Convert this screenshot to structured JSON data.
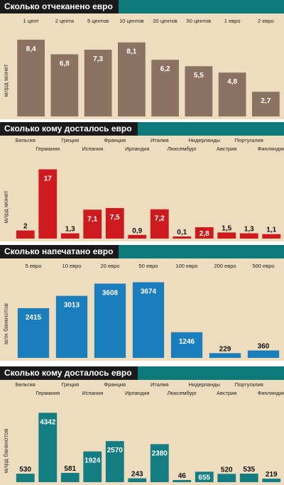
{
  "colors": {
    "panel_bg": "#eedcbf",
    "header_stripe": "#0d7a7a",
    "header_title_bg": "#1a1a1a",
    "header_title_text": "#ffffff"
  },
  "chart_data": [
    {
      "type": "bar",
      "title": "Сколько отчеканено евро",
      "ylabel": "млрд монет",
      "label_layout": "single",
      "categories": [
        "1 цент",
        "2 цента",
        "5 центов",
        "10 центов",
        "20 центов",
        "50 центов",
        "1 евро",
        "2 евро"
      ],
      "values": [
        8.4,
        6.8,
        7.3,
        8.1,
        6.2,
        5.5,
        4.8,
        2.7
      ],
      "value_labels": [
        "8,4",
        "6,8",
        "7,3",
        "8,1",
        "6,2",
        "5,5",
        "4,8",
        "2,7"
      ],
      "ylim": [
        0,
        9.4
      ],
      "bar_color": "#8c7262",
      "grid": false
    },
    {
      "type": "bar",
      "title": "Сколько кому досталось евро",
      "ylabel": "млрд монет",
      "label_layout": "staggered",
      "categories": [
        "Бельгия",
        "Германия",
        "Греция",
        "Испания",
        "Франция",
        "Ирландия",
        "Италия",
        "Люксембург",
        "Нидерланды",
        "Австрия",
        "Португалия",
        "Финляндия"
      ],
      "values": [
        2,
        17,
        1.3,
        7.1,
        7.5,
        0.9,
        7.2,
        0.1,
        2.8,
        1.5,
        1.3,
        1.1
      ],
      "value_labels": [
        "2",
        "17",
        "1,3",
        "7,1",
        "7,5",
        "0,9",
        "7,2",
        "0,1",
        "2,8",
        "1,5",
        "1,3",
        "1,1"
      ],
      "ylim": [
        0,
        19
      ],
      "bar_color": "#cc1a1e",
      "grid": false
    },
    {
      "type": "bar",
      "title": "Сколько напечатано евро",
      "ylabel": "млн банкнотов",
      "label_layout": "single",
      "categories": [
        "5 евро",
        "10 евро",
        "20 евро",
        "50 евро",
        "100 евро",
        "200 евро",
        "500 евро"
      ],
      "values": [
        2415,
        3013,
        3608,
        3674,
        1246,
        229,
        360
      ],
      "value_labels": [
        "2415",
        "3013",
        "3608",
        "3674",
        "1246",
        "229",
        "360"
      ],
      "ylim": [
        0,
        4000
      ],
      "bar_color": "#1a7dbc",
      "grid": false
    },
    {
      "type": "bar",
      "title": "Сколько кому досталось евро",
      "ylabel": "млрд банкнотов",
      "label_layout": "staggered",
      "categories": [
        "Бельгия",
        "Германия",
        "Греция",
        "Испания",
        "Франция",
        "Ирландия",
        "Италия",
        "Люксембург",
        "Нидерланды",
        "Австрия",
        "Португалия",
        "Финляндия"
      ],
      "values": [
        530,
        4342,
        581,
        1924,
        2570,
        243,
        2380,
        46,
        655,
        520,
        535,
        219
      ],
      "value_labels": [
        "530",
        "4342",
        "581",
        "1924",
        "2570",
        "243",
        "2380",
        "46",
        "655",
        "520",
        "535",
        "219"
      ],
      "ylim": [
        0,
        4800
      ],
      "bar_color": "#137d82",
      "grid": false
    }
  ]
}
